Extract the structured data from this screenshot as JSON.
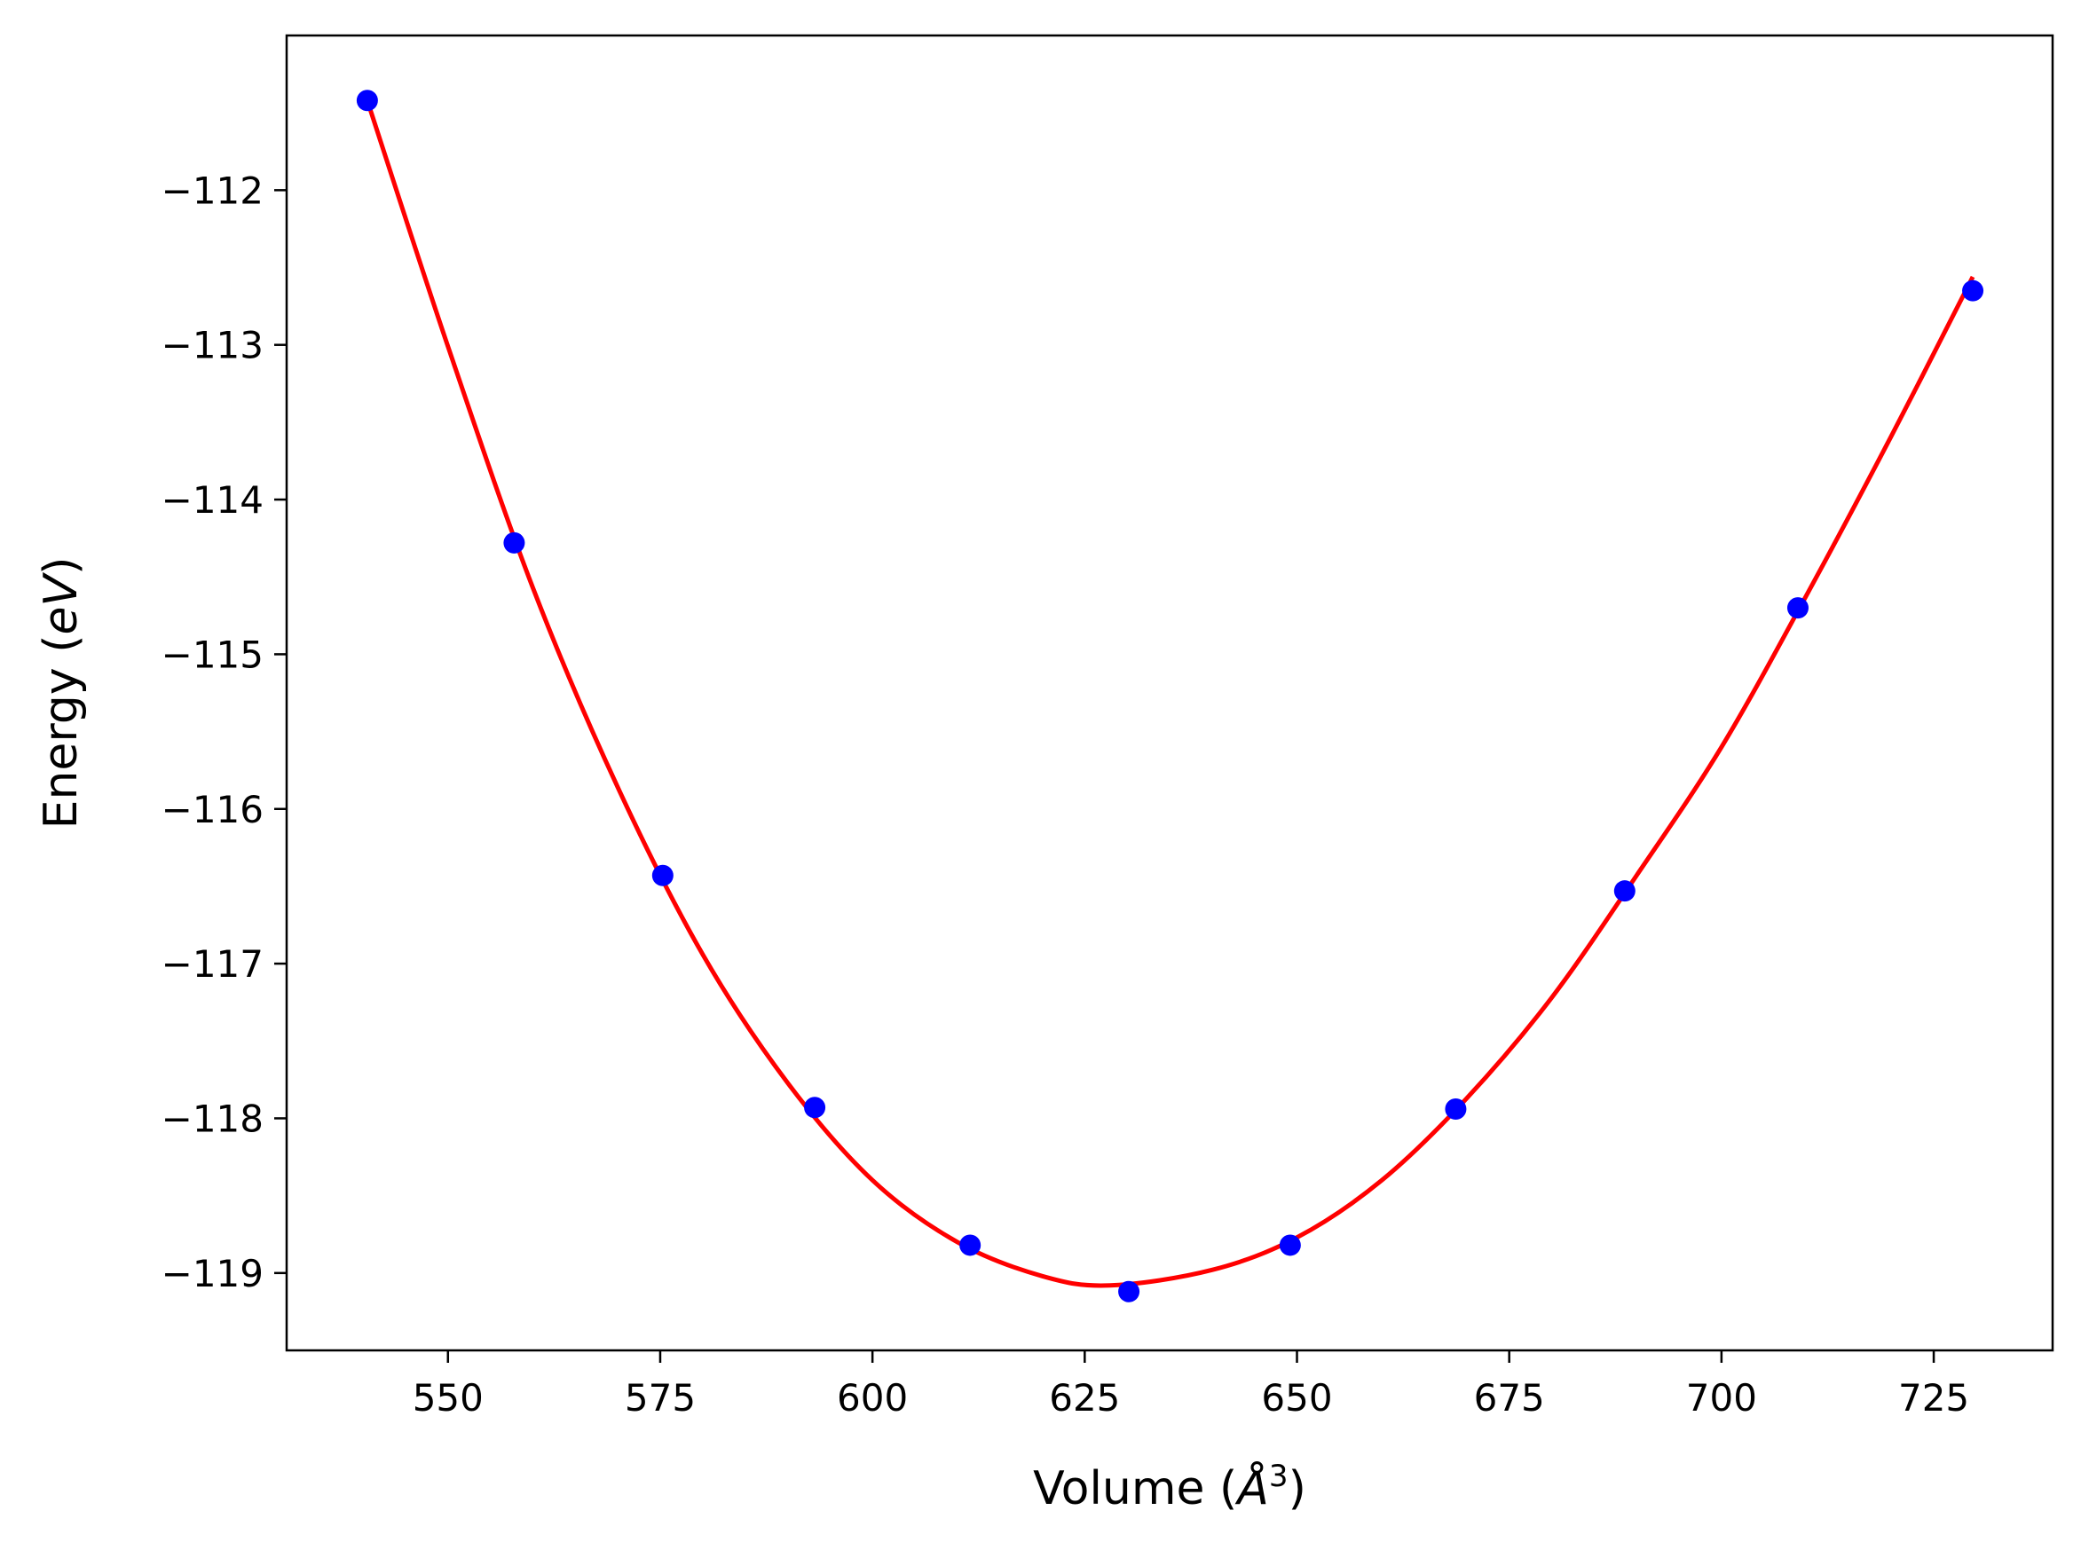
{
  "chart_data": {
    "type": "scatter",
    "title": "",
    "xlabel_parts": {
      "prefix": "Volume (",
      "symbol": "Å",
      "superscript": "3",
      "suffix": ")"
    },
    "ylabel_parts": {
      "prefix": "Energy (",
      "italic": "eV",
      "suffix": ")"
    },
    "xlim": [
      531,
      739
    ],
    "ylim": [
      -119.5,
      -111.0
    ],
    "x_ticks": [
      550,
      575,
      600,
      625,
      650,
      675,
      700,
      725
    ],
    "x_tick_labels": [
      "550",
      "575",
      "600",
      "625",
      "650",
      "675",
      "700",
      "725"
    ],
    "y_ticks": [
      -112,
      -113,
      -114,
      -115,
      -116,
      -117,
      -118,
      -119
    ],
    "y_tick_labels": [
      "−112",
      "−113",
      "−114",
      "−115",
      "−116",
      "−117",
      "−118",
      "−119"
    ],
    "grid": false,
    "legend": "none",
    "series": [
      {
        "kind": "points",
        "color": "#0000ff",
        "x": [
          540.5,
          557.8,
          575.3,
          593.2,
          611.5,
          630.2,
          649.2,
          668.7,
          688.6,
          709.0,
          729.6
        ],
        "y": [
          -111.42,
          -114.28,
          -116.43,
          -117.93,
          -118.82,
          -119.12,
          -118.82,
          -117.94,
          -116.53,
          -114.7,
          -112.65
        ]
      },
      {
        "kind": "fit-curve",
        "color": "#ff0000",
        "x": [
          540.5,
          550,
          560,
          570,
          580,
          590,
          600,
          610,
          620,
          628,
          640,
          650,
          660,
          670,
          680,
          690,
          700,
          710,
          720,
          729.6
        ],
        "y": [
          -111.42,
          -113.01,
          -114.57,
          -115.86,
          -116.94,
          -117.77,
          -118.4,
          -118.8,
          -119.02,
          -119.08,
          -118.98,
          -118.77,
          -118.4,
          -117.87,
          -117.22,
          -116.43,
          -115.6,
          -114.62,
          -113.59,
          -112.56
        ]
      }
    ]
  },
  "style": {
    "point_color": "#0000ff",
    "curve_color": "#ff0000",
    "axis_color": "#000000",
    "background": "#ffffff"
  }
}
